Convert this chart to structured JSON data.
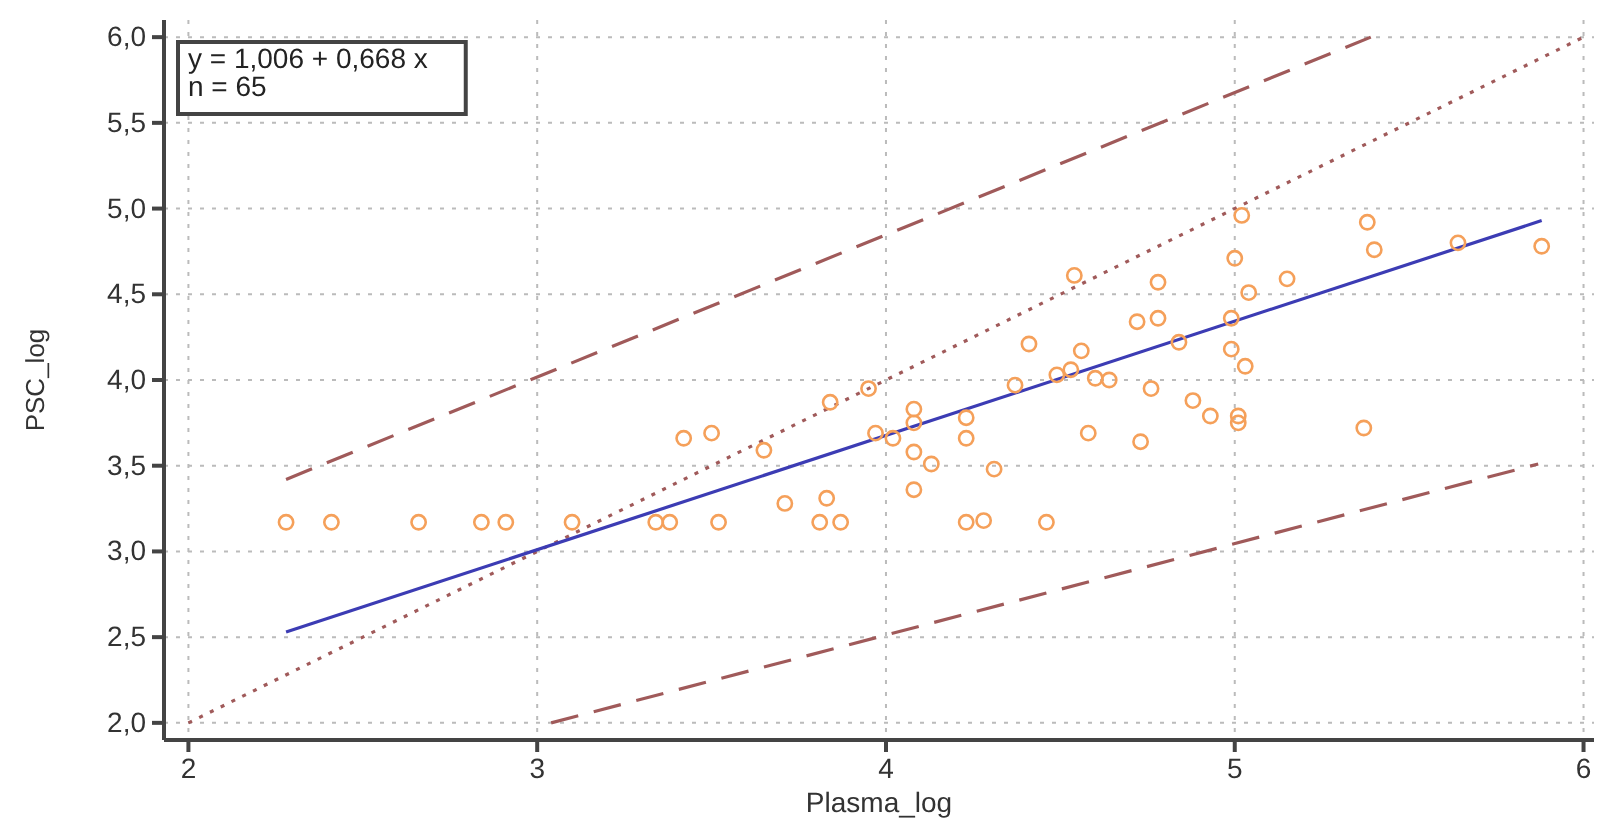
{
  "chart_data": {
    "type": "scatter",
    "xlabel": "Plasma_log",
    "ylabel": "PSC_log",
    "annotations": [
      "y = 1,006  +  0,668  x",
      "n = 65"
    ],
    "xlim": [
      1.93,
      6.03
    ],
    "ylim": [
      1.9,
      6.1
    ],
    "xticks": [
      2,
      3,
      4,
      5,
      6
    ],
    "yticks": [
      {
        "value": 2,
        "label": "2,0"
      },
      {
        "value": 2.5,
        "label": "2,5"
      },
      {
        "value": 3,
        "label": "3,0"
      },
      {
        "value": 3.5,
        "label": "3,5"
      },
      {
        "value": 4,
        "label": "4,0"
      },
      {
        "value": 4.5,
        "label": "4,5"
      },
      {
        "value": 5,
        "label": "5,0"
      },
      {
        "value": 5.5,
        "label": "5,5"
      },
      {
        "value": 6,
        "label": "6,0"
      }
    ],
    "grid": true,
    "series": [
      {
        "type": "line",
        "marker": "none",
        "color": "#a05a5a",
        "line_style": "dotted",
        "x": [
          2,
          6
        ],
        "values": [
          2,
          6
        ]
      },
      {
        "type": "line",
        "marker": "none",
        "color": "#a05a5a",
        "line_style": "dashed",
        "x": [
          2.28,
          5.39
        ],
        "values": [
          3.42,
          6.0
        ]
      },
      {
        "type": "line",
        "marker": "none",
        "color": "#a05a5a",
        "line_style": "dashed",
        "x": [
          3.04,
          5.87
        ],
        "values": [
          2.0,
          3.51
        ]
      },
      {
        "type": "line",
        "marker": "none",
        "color": "#3c3cb4",
        "line_style": "solid",
        "x": [
          2.28,
          5.88
        ],
        "values": [
          2.53,
          4.93
        ]
      },
      {
        "color": "#f5a05a",
        "marker": "circle",
        "x": [
          2.28,
          2.41,
          2.66,
          2.84,
          2.91,
          3.1,
          3.34,
          3.38,
          3.42,
          3.5,
          3.52,
          3.65,
          3.71,
          3.83,
          3.81,
          3.87,
          3.84,
          3.95,
          3.97,
          4.02,
          4.08,
          4.08,
          4.08,
          4.08,
          4.13,
          4.23,
          4.23,
          4.23,
          4.28,
          4.31,
          4.46,
          4.37,
          4.41,
          4.49,
          4.53,
          4.56,
          4.54,
          4.6,
          4.64,
          4.58,
          4.73,
          4.76,
          4.72,
          4.78,
          4.78,
          4.84,
          4.88,
          4.93,
          5.01,
          5.01,
          4.99,
          5.03,
          4.99,
          5.04,
          5.0,
          5.02,
          5.15,
          5.38,
          5.4,
          5.37,
          5.64,
          5.88
        ],
        "values": [
          3.17,
          3.17,
          3.17,
          3.17,
          3.17,
          3.17,
          3.17,
          3.17,
          3.66,
          3.69,
          3.17,
          3.59,
          3.28,
          3.31,
          3.17,
          3.17,
          3.87,
          3.95,
          3.69,
          3.66,
          3.83,
          3.75,
          3.58,
          3.36,
          3.51,
          3.78,
          3.66,
          3.17,
          3.18,
          3.48,
          3.17,
          3.97,
          4.21,
          4.03,
          4.06,
          4.17,
          4.61,
          4.01,
          4.0,
          3.69,
          3.64,
          3.95,
          4.34,
          4.36,
          4.57,
          4.22,
          3.88,
          3.79,
          3.79,
          3.75,
          4.18,
          4.08,
          4.36,
          4.51,
          4.71,
          4.96,
          4.59,
          4.92,
          4.76,
          3.72,
          4.8,
          4.78
        ]
      }
    ]
  }
}
